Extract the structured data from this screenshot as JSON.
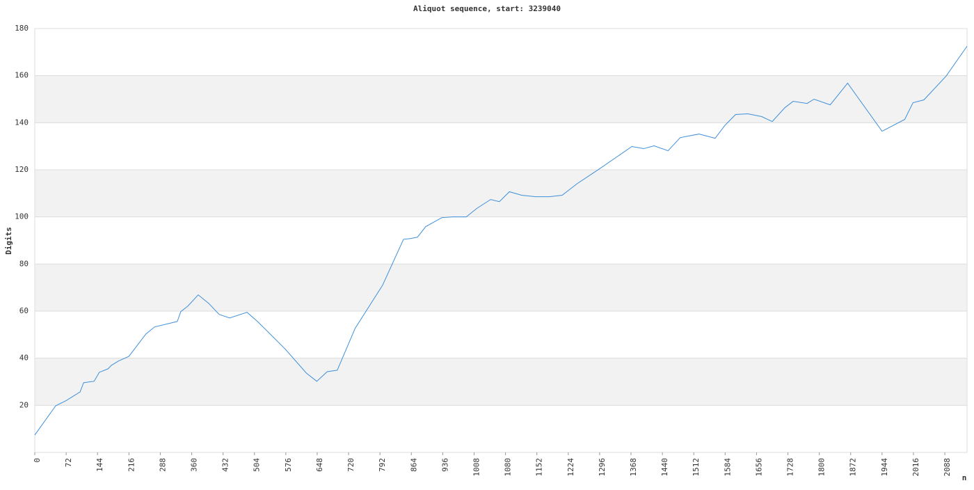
{
  "chart_data": {
    "type": "line",
    "title": "Aliquot sequence, start: 3239040",
    "y_label": "Digits",
    "x_label": "n",
    "xlim": [
      0,
      2139
    ],
    "ylim": [
      0,
      180
    ],
    "xticks": [
      0,
      72,
      144,
      216,
      288,
      360,
      432,
      504,
      576,
      648,
      720,
      792,
      864,
      936,
      1008,
      1080,
      1152,
      1224,
      1296,
      1368,
      1440,
      1512,
      1584,
      1656,
      1728,
      1800,
      1872,
      1944,
      2016,
      2088
    ],
    "yticks": [
      20,
      40,
      60,
      80,
      100,
      120,
      140,
      160,
      180
    ],
    "grid": true,
    "bands": true,
    "series": [
      {
        "name": "Digits",
        "color": "#3d8fd9",
        "x": [
          0,
          48,
          72,
          104,
          112,
          136,
          148,
          168,
          176,
          192,
          216,
          255,
          275,
          327,
          335,
          351,
          375,
          399,
          423,
          447,
          487,
          511,
          575,
          623,
          647,
          671,
          694,
          735,
          798,
          846,
          862,
          878,
          897,
          934,
          958,
          990,
          1014,
          1046,
          1066,
          1089,
          1117,
          1149,
          1181,
          1210,
          1245,
          1293,
          1370,
          1397,
          1421,
          1453,
          1481,
          1524,
          1561,
          1584,
          1608,
          1636,
          1668,
          1692,
          1721,
          1740,
          1772,
          1788,
          1825,
          1865,
          1944,
          1996,
          2015,
          2040,
          2091,
          2139
        ],
        "values": [
          7.4,
          19.8,
          22,
          25.7,
          29.6,
          30.2,
          34,
          35.5,
          37,
          38.8,
          40.8,
          50.3,
          53.3,
          55.6,
          59.8,
          62.1,
          66.9,
          63.3,
          58.6,
          57.1,
          59.5,
          55.6,
          43.8,
          33.7,
          30.2,
          34.3,
          34.9,
          52.7,
          71,
          90.5,
          90.8,
          91.4,
          95.9,
          99.7,
          100,
          100,
          103.6,
          107.4,
          106.5,
          110.7,
          109.2,
          108.6,
          108.6,
          109.2,
          114.2,
          120.1,
          129.9,
          129,
          130.2,
          128.1,
          133.7,
          135.2,
          133.4,
          139,
          143.5,
          143.8,
          142.6,
          140.5,
          146.4,
          149.1,
          148.2,
          150,
          147.6,
          156.8,
          136.4,
          141.4,
          148.5,
          149.7,
          159.8,
          172.5
        ]
      }
    ]
  }
}
